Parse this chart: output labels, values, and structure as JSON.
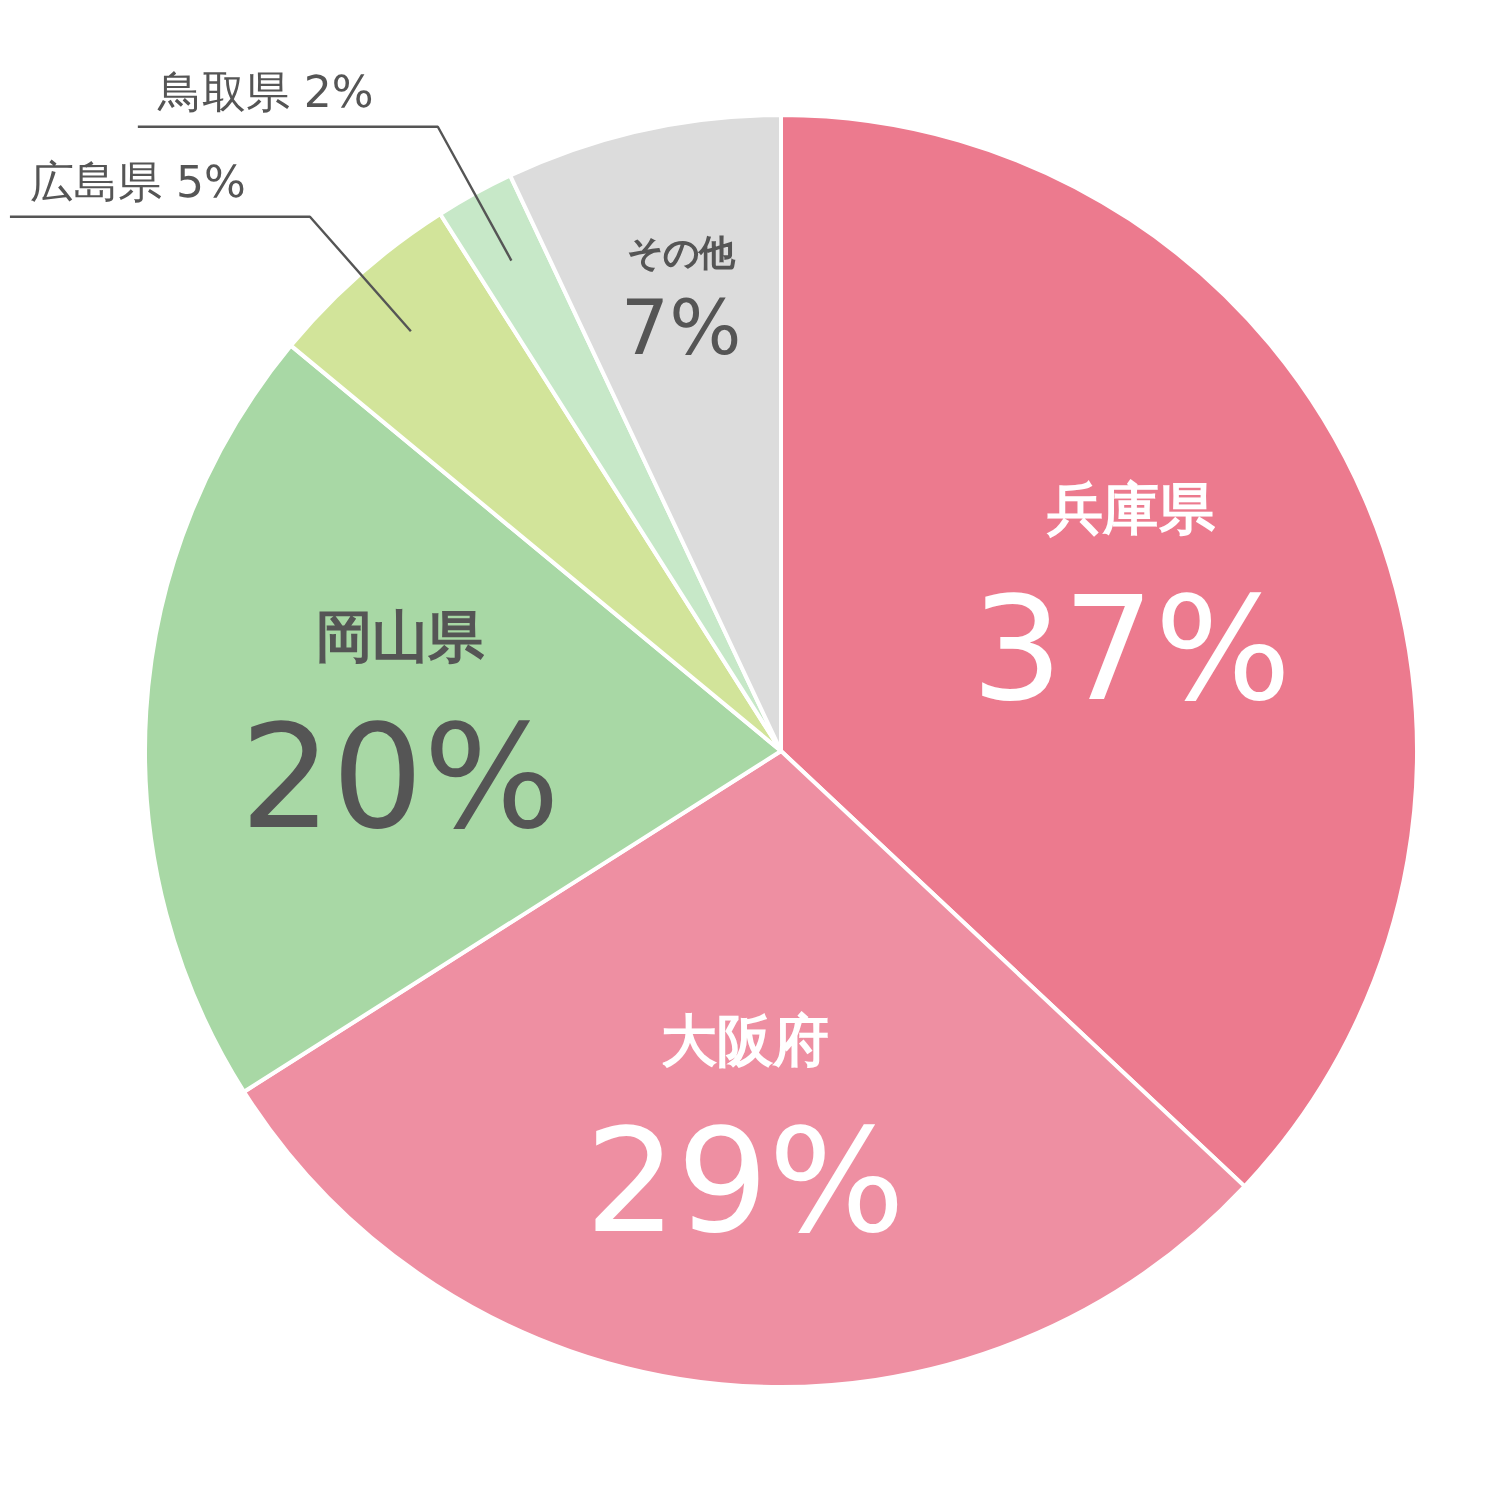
{
  "chart_data": {
    "type": "pie",
    "categories": [
      "兵庫県",
      "大阪府",
      "岡山県",
      "広島県",
      "鳥取県",
      "その他"
    ],
    "values": [
      37,
      29,
      20,
      5,
      2,
      7
    ],
    "value_labels": [
      "37%",
      "29%",
      "20%",
      "5%",
      "2%",
      "7%"
    ],
    "colors": [
      "#ec7a8e",
      "#ee8fa2",
      "#a8d8a5",
      "#d2e49a",
      "#c7e8c8",
      "#dcdcdc"
    ]
  }
}
